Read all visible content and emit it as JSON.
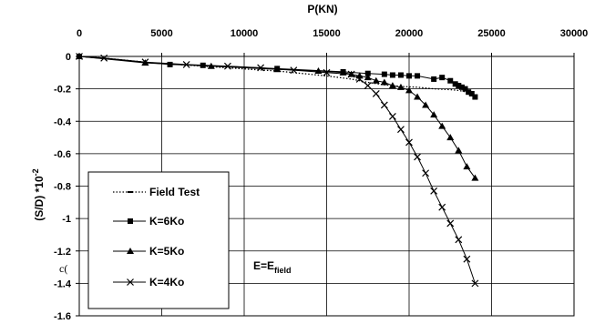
{
  "chart_data": {
    "type": "line",
    "xlabel": "P(KN)",
    "ylabel": "(S/D) *10",
    "ylabel_superscript": "-2",
    "xlim": [
      0,
      30000
    ],
    "ylim": [
      -1.6,
      0
    ],
    "x_ticks": [
      "0",
      "5000",
      "10000",
      "15000",
      "20000",
      "25000",
      "30000"
    ],
    "y_ticks": [
      "0",
      "-0.2",
      "-0.4",
      "-0.6",
      "-0.8",
      "-1",
      "-1.2",
      "-1.4",
      "-1.6"
    ],
    "x_axis_position": "top",
    "grid": true,
    "legend_position": "bottom-left",
    "annotation": {
      "main": "E=E",
      "subscript": "field"
    },
    "left_fragment": "c(",
    "series": [
      {
        "name": "Field Test",
        "style": "dotted",
        "marker": "dash",
        "x": [
          0,
          1500,
          3000,
          4500,
          6000,
          7500,
          9000,
          10500,
          12000,
          13500,
          15000,
          16500,
          17500,
          18500,
          19500,
          20500,
          21500,
          22500,
          23000,
          23500,
          24000
        ],
        "y": [
          0,
          -0.01,
          -0.025,
          -0.04,
          -0.05,
          -0.06,
          -0.07,
          -0.08,
          -0.09,
          -0.105,
          -0.12,
          -0.14,
          -0.16,
          -0.175,
          -0.185,
          -0.19,
          -0.2,
          -0.205,
          -0.21,
          -0.22,
          -0.25
        ]
      },
      {
        "name": "K=6Ko",
        "style": "solid",
        "marker": "square",
        "x": [
          0,
          5500,
          7500,
          12000,
          16000,
          17500,
          18500,
          19000,
          19500,
          20000,
          20500,
          21500,
          22000,
          22500,
          22800,
          23000,
          23200,
          23400,
          23600,
          23800,
          24000
        ],
        "y": [
          0,
          -0.05,
          -0.055,
          -0.075,
          -0.095,
          -0.105,
          -0.11,
          -0.115,
          -0.115,
          -0.12,
          -0.12,
          -0.14,
          -0.13,
          -0.15,
          -0.17,
          -0.18,
          -0.19,
          -0.2,
          -0.22,
          -0.23,
          -0.25
        ]
      },
      {
        "name": "K=5Ko",
        "style": "solid",
        "marker": "triangle",
        "x": [
          0,
          4000,
          8000,
          12000,
          14500,
          16000,
          16500,
          17000,
          17500,
          18000,
          18500,
          19000,
          19500,
          20000,
          20500,
          21000,
          21500,
          22000,
          22500,
          23000,
          23500,
          24000
        ],
        "y": [
          0,
          -0.04,
          -0.06,
          -0.08,
          -0.09,
          -0.1,
          -0.11,
          -0.12,
          -0.13,
          -0.15,
          -0.16,
          -0.18,
          -0.19,
          -0.21,
          -0.25,
          -0.3,
          -0.36,
          -0.43,
          -0.5,
          -0.58,
          -0.68,
          -0.75
        ]
      },
      {
        "name": "K=4Ko",
        "style": "solid",
        "marker": "x",
        "x": [
          0,
          1500,
          4000,
          6500,
          9000,
          11000,
          13000,
          15000,
          16500,
          17000,
          17500,
          18000,
          18500,
          19000,
          19500,
          20000,
          20500,
          21000,
          21500,
          22000,
          22500,
          23000,
          23500,
          24000
        ],
        "y": [
          0,
          -0.01,
          -0.035,
          -0.05,
          -0.06,
          -0.07,
          -0.085,
          -0.1,
          -0.11,
          -0.14,
          -0.18,
          -0.23,
          -0.3,
          -0.37,
          -0.45,
          -0.53,
          -0.62,
          -0.72,
          -0.83,
          -0.93,
          -1.03,
          -1.13,
          -1.25,
          -1.4
        ]
      }
    ]
  }
}
